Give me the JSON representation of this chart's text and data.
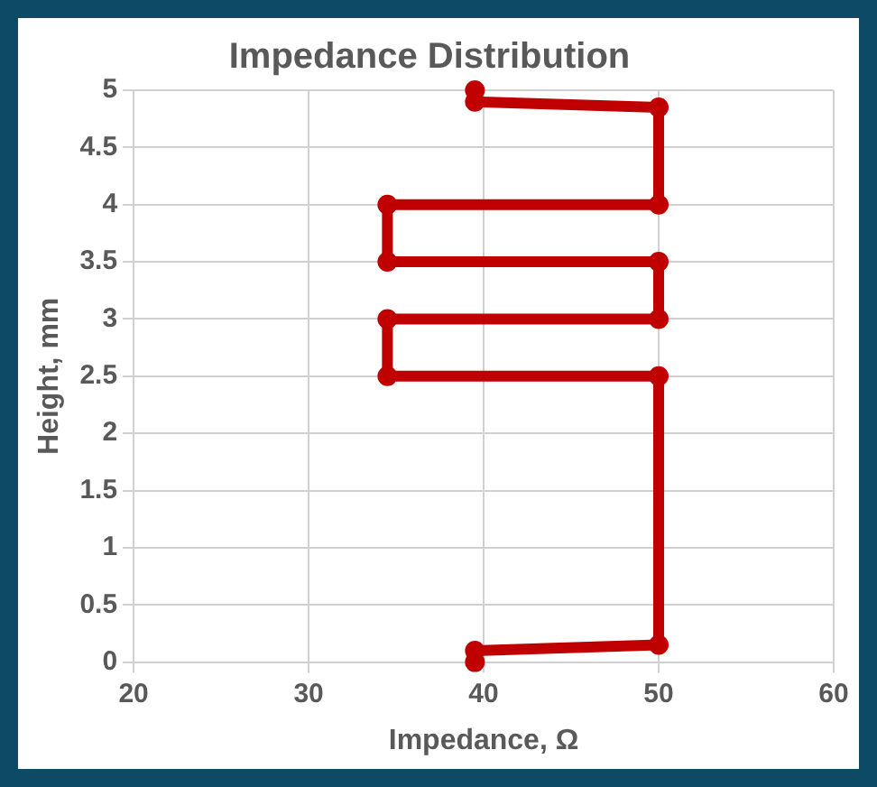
{
  "chart_data": {
    "type": "line",
    "title": "Impedance Distribution",
    "xlabel": "Impedance, Ω",
    "ylabel": "Height, mm",
    "x": [
      39.5,
      39.5,
      50,
      50,
      34.5,
      34.5,
      50,
      50,
      34.5,
      34.5,
      50,
      50,
      39.5,
      39.5
    ],
    "series": [
      {
        "color": "#c00000",
        "values": [
          0,
          0.1,
          0.15,
          2.5,
          2.5,
          3,
          3,
          3.5,
          3.5,
          4,
          4,
          4.85,
          4.9,
          5
        ]
      }
    ],
    "xlim": [
      20,
      60
    ],
    "xticks": [
      20,
      30,
      40,
      50,
      60
    ],
    "ylim": [
      0,
      5
    ],
    "yticks": [
      0,
      0.5,
      1,
      1.5,
      2,
      2.5,
      3,
      3.5,
      4,
      4.5,
      5
    ],
    "grid": true,
    "marker": "circle",
    "line_style": "solid"
  }
}
